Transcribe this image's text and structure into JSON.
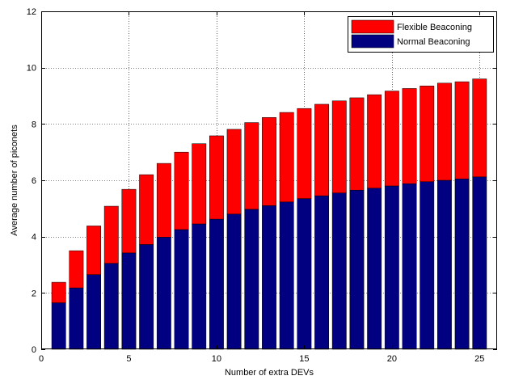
{
  "chart_data": {
    "type": "bar",
    "stacked": true,
    "title": "",
    "xlabel": "Number of extra DEVs",
    "ylabel": "Average number of piconets",
    "xlim": [
      0,
      26
    ],
    "ylim": [
      0,
      12
    ],
    "xticks": [
      "0",
      "5",
      "10",
      "15",
      "20",
      "25"
    ],
    "yticks": [
      "0",
      "2",
      "4",
      "6",
      "8",
      "10",
      "12"
    ],
    "grid": true,
    "legend_position": "top-right",
    "x": [
      1,
      2,
      3,
      4,
      5,
      6,
      7,
      8,
      9,
      10,
      11,
      12,
      13,
      14,
      15,
      16,
      17,
      18,
      19,
      20,
      21,
      22,
      23,
      24,
      25
    ],
    "series": [
      {
        "name": "Normal Beaconing",
        "color": "#000080",
        "values": [
          1.65,
          2.18,
          2.65,
          3.05,
          3.42,
          3.72,
          3.98,
          4.25,
          4.45,
          4.62,
          4.8,
          4.97,
          5.1,
          5.23,
          5.35,
          5.45,
          5.55,
          5.65,
          5.72,
          5.8,
          5.88,
          5.95,
          6.0,
          6.05,
          6.12
        ]
      },
      {
        "name": "Flexible Beaconing",
        "color": "#ff0000",
        "values": [
          0.73,
          1.32,
          1.73,
          2.03,
          2.26,
          2.48,
          2.62,
          2.75,
          2.85,
          2.96,
          3.01,
          3.08,
          3.13,
          3.18,
          3.2,
          3.25,
          3.27,
          3.28,
          3.32,
          3.37,
          3.38,
          3.4,
          3.45,
          3.45,
          3.48
        ]
      }
    ]
  }
}
